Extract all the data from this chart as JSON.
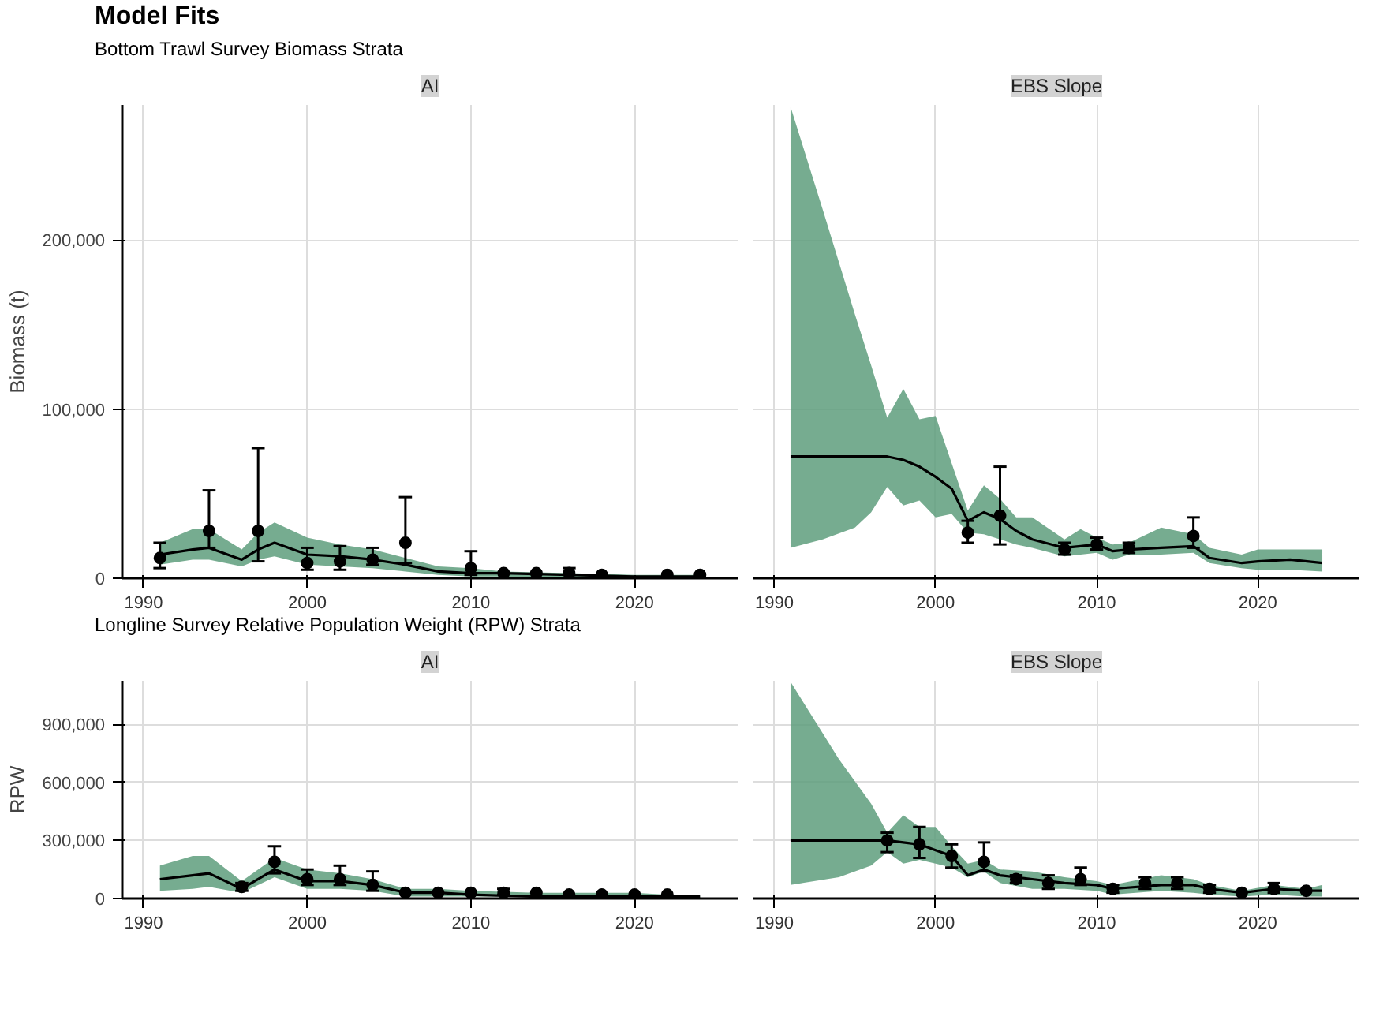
{
  "chart_data": [
    {
      "type": "line",
      "title": "Model Fits",
      "annotations": [
        "Bottom Trawl Survey Biomass Strata"
      ],
      "subtitle": "AI",
      "ylabel": "Biomass (t)",
      "xlim": [
        1988.7,
        2026.3
      ],
      "ylim": [
        0,
        280000
      ],
      "xticks": [
        1990,
        2000,
        2010,
        2020
      ],
      "yticks": [
        0,
        {
          "value": 100000,
          "label": "100,000"
        },
        {
          "value": 200000,
          "label": "200,000"
        }
      ],
      "grid": true,
      "series": [
        {
          "color": "#000000",
          "x": [
            1991,
            1993,
            1994,
            1996,
            1997,
            1998,
            2000,
            2002,
            2004,
            2006,
            2008,
            2010,
            2012,
            2016,
            2020,
            2024
          ],
          "values": [
            14000,
            17000,
            18000,
            11000,
            17000,
            21000,
            14000,
            13000,
            11000,
            8000,
            4000,
            3000,
            3000,
            2000,
            1000,
            1000
          ],
          "upper": [
            21000,
            29000,
            29000,
            17000,
            27000,
            33000,
            24000,
            20000,
            17000,
            12000,
            7000,
            6000,
            4000,
            3000,
            2000,
            2000
          ],
          "lower": [
            8000,
            11000,
            11000,
            7000,
            11000,
            13000,
            8000,
            7000,
            6000,
            4000,
            2000,
            1000,
            1000,
            0,
            0,
            0
          ]
        },
        {
          "type": "scatter",
          "color": "#000000",
          "marker": "circle",
          "x": [
            1991,
            1994,
            1997,
            2000,
            2002,
            2004,
            2006,
            2010,
            2012,
            2014,
            2016,
            2018,
            2022,
            2024
          ],
          "values": [
            12000,
            28000,
            28000,
            9000,
            10000,
            11000,
            21000,
            6000,
            3000,
            3000,
            3000,
            2000,
            2000,
            2000
          ],
          "errors": [
            [
              6000,
              21000
            ],
            [
              18000,
              52000
            ],
            [
              10000,
              77000
            ],
            [
              5000,
              18000
            ],
            [
              5000,
              19000
            ],
            [
              8000,
              18000
            ],
            [
              9000,
              48000
            ],
            [
              2000,
              16000
            ],
            null,
            null,
            [
              2000,
              6000
            ],
            null,
            null,
            null
          ]
        }
      ]
    },
    {
      "type": "line",
      "subtitle": "EBS Slope",
      "xlim": [
        1988.7,
        2026.3
      ],
      "ylim": [
        0,
        280000
      ],
      "xticks": [
        1990,
        2000,
        2010,
        2020
      ],
      "yticks": [
        {
          "value": 0,
          "label": null
        },
        {
          "value": 100000,
          "label": null
        },
        {
          "value": 200000,
          "label": null
        }
      ],
      "grid": true,
      "tick_labels": "x",
      "series": [
        {
          "color": "#000000",
          "x": [
            1991,
            1993,
            1995,
            1996,
            1997,
            1998,
            1999,
            2000,
            2001,
            2002,
            2003,
            2004,
            2005,
            2006,
            2008,
            2009,
            2010,
            2011,
            2012,
            2014,
            2016,
            2017,
            2019,
            2020,
            2022,
            2024
          ],
          "values": [
            72000,
            72000,
            72000,
            72000,
            72000,
            70000,
            66000,
            60000,
            53000,
            34000,
            39000,
            35000,
            28000,
            23000,
            18000,
            19000,
            20000,
            16000,
            17000,
            18000,
            19000,
            12000,
            9000,
            10000,
            11000,
            9000
          ],
          "upper": [
            279000,
            218000,
            156000,
            126000,
            95000,
            112000,
            94000,
            96000,
            68000,
            40000,
            55000,
            47000,
            36000,
            36000,
            23000,
            29000,
            24000,
            20000,
            21000,
            30000,
            26000,
            18000,
            14000,
            17000,
            17000,
            17000
          ],
          "lower": [
            18000,
            23000,
            30000,
            39000,
            54000,
            43000,
            46000,
            36000,
            38000,
            27000,
            26000,
            23000,
            20000,
            18000,
            13000,
            14000,
            15000,
            11000,
            14000,
            14000,
            15000,
            9000,
            6000,
            5000,
            5000,
            4000
          ]
        },
        {
          "type": "scatter",
          "color": "#000000",
          "marker": "circle",
          "x": [
            2002,
            2004,
            2008,
            2010,
            2012,
            2016
          ],
          "values": [
            27000,
            37000,
            17000,
            20000,
            18000,
            25000
          ],
          "errors": [
            [
              21000,
              34000
            ],
            [
              20000,
              66000
            ],
            [
              14000,
              21000
            ],
            [
              17000,
              24000
            ],
            [
              15000,
              21000
            ],
            [
              18000,
              36000
            ]
          ]
        }
      ]
    },
    {
      "type": "line",
      "annotations": [
        "Longline Survey Relative Population Weight (RPW) Strata"
      ],
      "subtitle": "AI",
      "ylabel": "RPW",
      "xlim": [
        1988.7,
        2026.3
      ],
      "ylim": [
        0,
        1125000
      ],
      "xticks": [
        1990,
        2000,
        2010,
        2020
      ],
      "yticks": [
        0,
        {
          "value": 300000,
          "label": "300,000"
        },
        {
          "value": 600000,
          "label": "600,000"
        },
        {
          "value": 900000,
          "label": "900,000"
        }
      ],
      "grid": true,
      "series": [
        {
          "color": "#000000",
          "x": [
            1991,
            1993,
            1994,
            1996,
            1998,
            2000,
            2002,
            2004,
            2006,
            2008,
            2010,
            2014,
            2020,
            2024
          ],
          "values": [
            100000,
            120000,
            130000,
            50000,
            150000,
            90000,
            90000,
            70000,
            30000,
            30000,
            20000,
            10000,
            10000,
            10000
          ],
          "upper": [
            170000,
            220000,
            220000,
            90000,
            210000,
            150000,
            130000,
            100000,
            50000,
            50000,
            40000,
            30000,
            30000,
            10000
          ],
          "lower": [
            40000,
            50000,
            60000,
            30000,
            110000,
            50000,
            50000,
            40000,
            10000,
            10000,
            10000,
            10000,
            0,
            0
          ]
        },
        {
          "type": "scatter",
          "color": "#000000",
          "marker": "circle",
          "x": [
            1996,
            1998,
            2000,
            2002,
            2004,
            2006,
            2008,
            2010,
            2012,
            2014,
            2016,
            2018,
            2020,
            2022
          ],
          "values": [
            60000,
            190000,
            100000,
            100000,
            70000,
            30000,
            30000,
            30000,
            30000,
            30000,
            20000,
            20000,
            20000,
            20000
          ],
          "errors": [
            [
              40000,
              80000
            ],
            [
              130000,
              270000
            ],
            [
              70000,
              150000
            ],
            [
              70000,
              170000
            ],
            [
              40000,
              140000
            ],
            null,
            null,
            null,
            [
              20000,
              50000
            ],
            null,
            null,
            null,
            null,
            null
          ]
        }
      ]
    },
    {
      "type": "line",
      "subtitle": "EBS Slope",
      "xlim": [
        1988.7,
        2026.3
      ],
      "ylim": [
        0,
        1125000
      ],
      "xticks": [
        1990,
        2000,
        2010,
        2020
      ],
      "yticks": [
        {
          "value": 0,
          "label": null
        },
        {
          "value": 300000,
          "label": null
        },
        {
          "value": 600000,
          "label": null
        },
        {
          "value": 900000,
          "label": null
        }
      ],
      "grid": true,
      "tick_labels": "x",
      "series": [
        {
          "color": "#000000",
          "x": [
            1991,
            1994,
            1996,
            1997,
            1998,
            1999,
            2000,
            2001,
            2002,
            2003,
            2004,
            2006,
            2008,
            2010,
            2011,
            2014,
            2016,
            2017,
            2019,
            2021,
            2023,
            2024
          ],
          "values": [
            300000,
            300000,
            300000,
            300000,
            290000,
            280000,
            250000,
            220000,
            120000,
            150000,
            120000,
            100000,
            80000,
            70000,
            50000,
            70000,
            70000,
            50000,
            30000,
            50000,
            40000,
            40000
          ],
          "upper": [
            1120000,
            720000,
            490000,
            340000,
            430000,
            370000,
            370000,
            270000,
            180000,
            200000,
            150000,
            140000,
            110000,
            90000,
            70000,
            120000,
            100000,
            70000,
            40000,
            70000,
            50000,
            70000
          ],
          "lower": [
            70000,
            110000,
            170000,
            240000,
            180000,
            200000,
            180000,
            160000,
            110000,
            140000,
            80000,
            50000,
            50000,
            40000,
            20000,
            40000,
            30000,
            20000,
            10000,
            20000,
            10000,
            10000
          ]
        },
        {
          "type": "scatter",
          "color": "#000000",
          "marker": "circle",
          "x": [
            1997,
            1999,
            2001,
            2003,
            2005,
            2007,
            2009,
            2011,
            2013,
            2015,
            2017,
            2019,
            2021,
            2023
          ],
          "values": [
            300000,
            280000,
            220000,
            190000,
            100000,
            80000,
            100000,
            50000,
            80000,
            80000,
            50000,
            30000,
            50000,
            40000
          ],
          "errors": [
            [
              240000,
              340000
            ],
            [
              210000,
              370000
            ],
            [
              160000,
              280000
            ],
            [
              140000,
              290000
            ],
            [
              80000,
              120000
            ],
            [
              50000,
              120000
            ],
            [
              70000,
              160000
            ],
            [
              30000,
              70000
            ],
            [
              50000,
              110000
            ],
            [
              50000,
              110000
            ],
            [
              30000,
              70000
            ],
            null,
            [
              30000,
              80000
            ],
            null
          ]
        }
      ]
    }
  ]
}
